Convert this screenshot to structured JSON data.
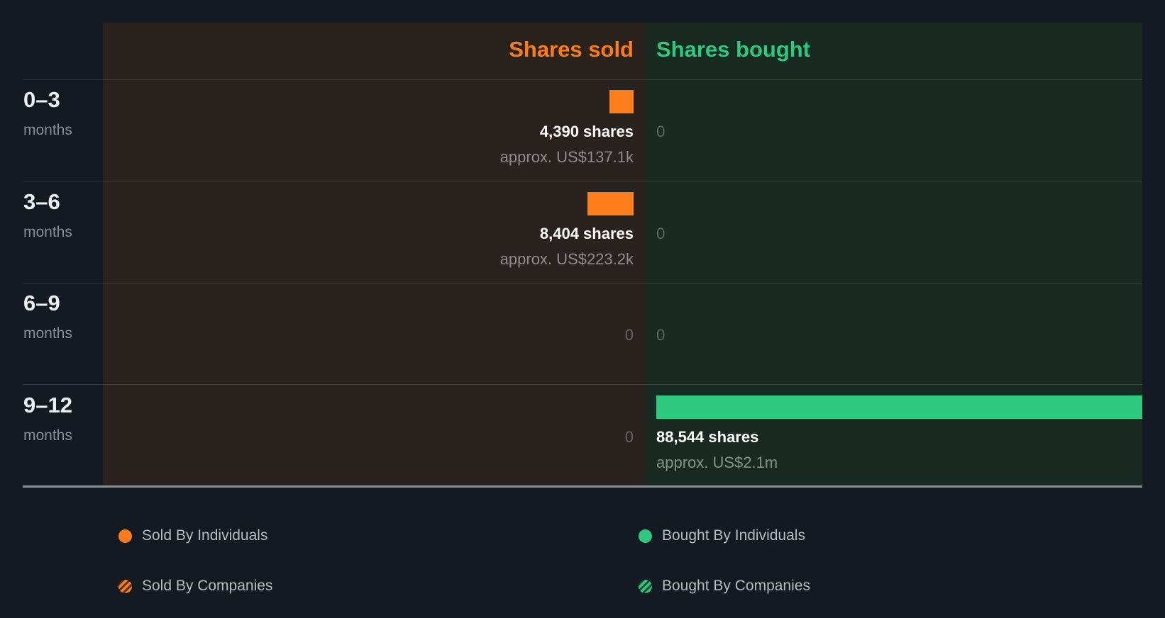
{
  "chart_data": {
    "type": "bar",
    "orientation": "horizontal",
    "categories": [
      "0–3 months",
      "3–6 months",
      "6–9 months",
      "9–12 months"
    ],
    "series": [
      {
        "name": "Shares sold",
        "values": [
          4390,
          8404,
          0,
          0
        ]
      },
      {
        "name": "Shares bought",
        "values": [
          0,
          0,
          0,
          88544
        ]
      }
    ],
    "columns": {
      "sold": "Shares sold",
      "bought": "Shares bought"
    },
    "rows": [
      {
        "period": "0–3",
        "unit": "months",
        "sold": {
          "shares": 4390,
          "label": "4,390 shares",
          "approx": "approx. US$137.1k"
        },
        "bought": {
          "shares": 0,
          "label": "0"
        }
      },
      {
        "period": "3–6",
        "unit": "months",
        "sold": {
          "shares": 8404,
          "label": "8,404 shares",
          "approx": "approx. US$223.2k"
        },
        "bought": {
          "shares": 0,
          "label": "0"
        }
      },
      {
        "period": "6–9",
        "unit": "months",
        "sold": {
          "shares": 0,
          "label": "0"
        },
        "bought": {
          "shares": 0,
          "label": "0"
        }
      },
      {
        "period": "9–12",
        "unit": "months",
        "sold": {
          "shares": 0,
          "label": "0"
        },
        "bought": {
          "shares": 88544,
          "label": "88,544 shares",
          "approx": "approx. US$2.1m"
        }
      }
    ],
    "colors": {
      "sold": "#ff7c19",
      "bought": "#2dc97c",
      "sold_panel_bg": "#2a221f",
      "bought_panel_bg": "#182a22",
      "background": "#141a22"
    }
  },
  "legend": {
    "items": [
      {
        "label": "Sold By Individuals",
        "swatch": "sold-solid"
      },
      {
        "label": "Sold By Companies",
        "swatch": "sold-striped"
      },
      {
        "label": "Bought By Individuals",
        "swatch": "bought-solid"
      },
      {
        "label": "Bought By Companies",
        "swatch": "bought-striped"
      }
    ]
  }
}
